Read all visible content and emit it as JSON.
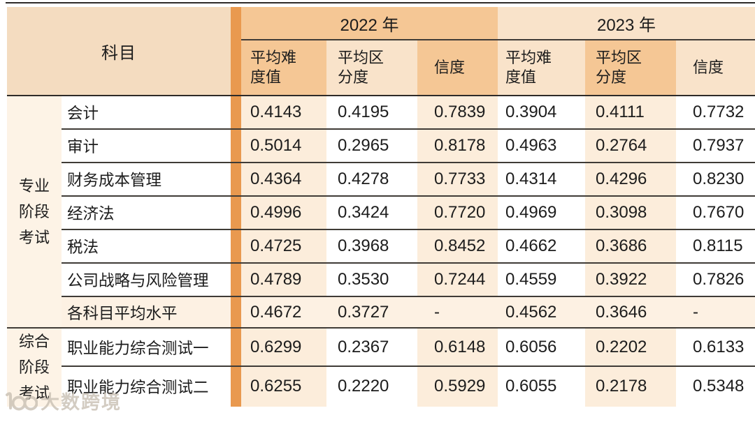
{
  "chart_data": {
    "type": "table",
    "header": {
      "subject": "科目",
      "years": [
        {
          "label": "2022 年",
          "metrics": [
            "平均难度值",
            "平均区分度",
            "信度"
          ]
        },
        {
          "label": "2023 年",
          "metrics": [
            "平均难度值",
            "平均区分度",
            "信度"
          ]
        }
      ]
    },
    "groups": [
      {
        "label": "专业阶段考试",
        "label_lines": [
          "专业",
          "阶段",
          "考试"
        ],
        "rows": [
          {
            "subject": "会计",
            "values": [
              "0.4143",
              "0.4195",
              "0.7839",
              "0.3904",
              "0.4111",
              "0.7732"
            ]
          },
          {
            "subject": "审计",
            "values": [
              "0.5014",
              "0.2965",
              "0.8178",
              "0.4963",
              "0.2764",
              "0.7937"
            ]
          },
          {
            "subject": "财务成本管理",
            "values": [
              "0.4364",
              "0.4278",
              "0.7733",
              "0.4314",
              "0.4296",
              "0.8230"
            ]
          },
          {
            "subject": "经济法",
            "values": [
              "0.4996",
              "0.3424",
              "0.7720",
              "0.4969",
              "0.3098",
              "0.7670"
            ]
          },
          {
            "subject": "税法",
            "values": [
              "0.4725",
              "0.3968",
              "0.8452",
              "0.4662",
              "0.3686",
              "0.8115"
            ]
          },
          {
            "subject": "公司战略与风险管理",
            "values": [
              "0.4789",
              "0.3530",
              "0.7244",
              "0.4559",
              "0.3922",
              "0.7826"
            ]
          },
          {
            "subject": "各科目平均水平",
            "values": [
              "0.4672",
              "0.3727",
              "-",
              "0.4562",
              "0.3646",
              "-"
            ],
            "summary": true
          }
        ]
      },
      {
        "label": "综合阶段考试",
        "label_lines": [
          "综合",
          "阶段",
          "考试"
        ],
        "rows": [
          {
            "subject": "职业能力综合测试一",
            "values": [
              "0.6299",
              "0.2367",
              "0.6148",
              "0.6056",
              "0.2202",
              "0.6133"
            ]
          },
          {
            "subject": "职业能力综合测试二",
            "values": [
              "0.6255",
              "0.2220",
              "0.5929",
              "0.6055",
              "0.2178",
              "0.5348"
            ]
          }
        ]
      }
    ]
  },
  "watermark": {
    "brand": "大数跨境"
  },
  "colors": {
    "accent_bar": "#E9994F",
    "banner_medium": "#F5C795",
    "banner_light": "#F9E3CA",
    "header_tan": "#F4DCC0",
    "col_tint": "#FCEDDB",
    "group_bg": "#FDF3E6",
    "summary_bg": "#FDF1E3",
    "line": "#3F3B36",
    "line_strong": "#2E2B28",
    "text": "#1C1C1C",
    "watermark": "#C9C0B4"
  }
}
